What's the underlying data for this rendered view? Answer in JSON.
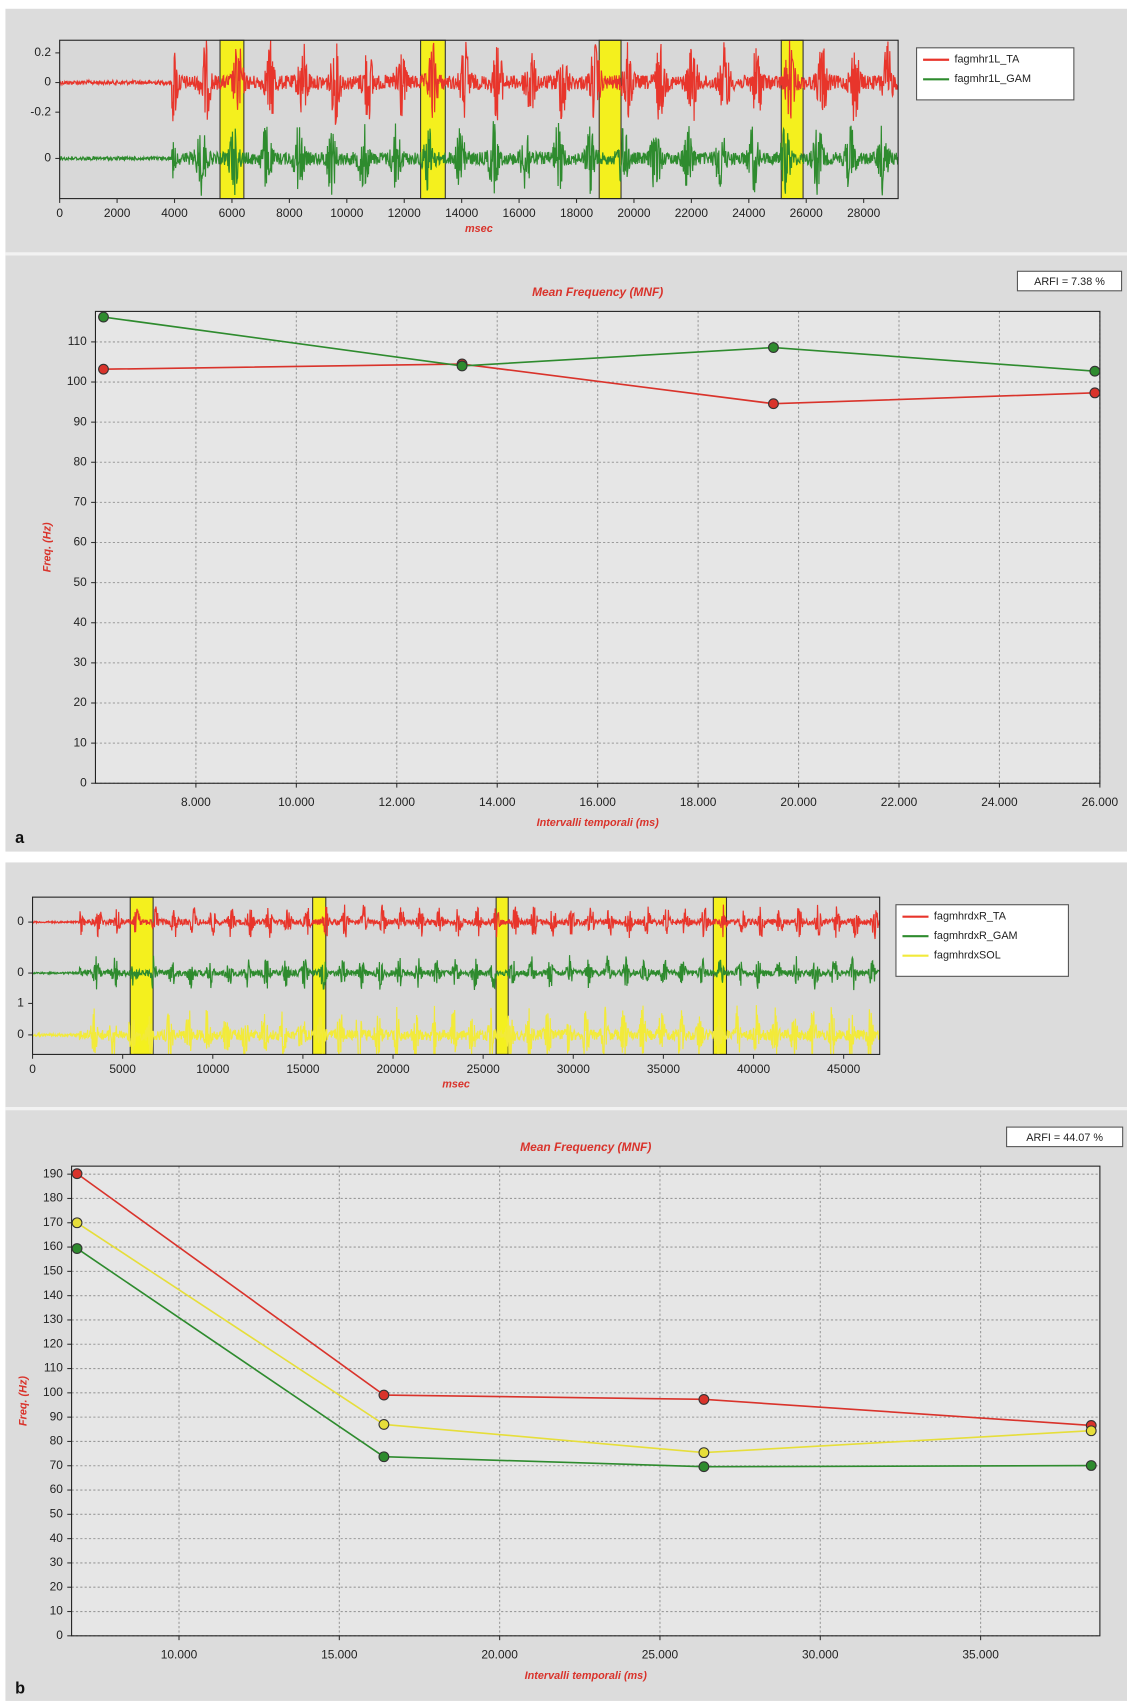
{
  "panel_labels": [
    "a",
    "b"
  ],
  "chart_data": [
    {
      "type": "signal",
      "xlabel": "msec",
      "xlim": [
        0,
        29200
      ],
      "xticks": [
        0,
        2000,
        4000,
        6000,
        8000,
        10000,
        12000,
        14000,
        16000,
        18000,
        20000,
        22000,
        24000,
        26000,
        28000
      ],
      "highlights": [
        [
          5585,
          6415
        ],
        [
          12570,
          13430
        ],
        [
          18790,
          19550
        ],
        [
          25130,
          25890
        ]
      ],
      "series": [
        {
          "name": "fagmhr1L_TA",
          "color": "#e8352b",
          "ylim": [
            -0.3,
            0.3
          ],
          "yticks": [
            0.2,
            0,
            -0.2
          ]
        },
        {
          "name": "fagmhr1L_GAM",
          "color": "#2e8b2e",
          "ylim": [
            -0.3,
            0.3
          ],
          "yticks": [
            0
          ]
        }
      ]
    },
    {
      "type": "line",
      "title": "Mean Frequency (MNF)",
      "annotation": "ARFI = 7.38 %",
      "xlabel": "Intervalli temporali (ms)",
      "ylabel": "Freq. (Hz)",
      "grid": true,
      "x": [
        6160,
        13300,
        19500,
        25900
      ],
      "series": [
        {
          "name": "fagmhr1L_TA",
          "color": "#d9332b",
          "values": [
            103.2,
            104.5,
            94.6,
            97.3
          ]
        },
        {
          "name": "fagmhr1L_GAM",
          "color": "#2e8b2e",
          "values": [
            116.2,
            104,
            108.6,
            102.7
          ]
        }
      ],
      "xlim": [
        6000,
        26000
      ],
      "xticks": [
        {
          "value": 8000,
          "label": "8.000"
        },
        {
          "value": 10000,
          "label": "10.000"
        },
        {
          "value": 12000,
          "label": "12.000"
        },
        {
          "value": 14000,
          "label": "14.000"
        },
        {
          "value": 16000,
          "label": "16.000"
        },
        {
          "value": 18000,
          "label": "18.000"
        },
        {
          "value": 20000,
          "label": "20.000"
        },
        {
          "value": 22000,
          "label": "22.000"
        },
        {
          "value": 24000,
          "label": "24.000"
        },
        {
          "value": 26000,
          "label": "26.000"
        }
      ],
      "ylim": [
        0,
        117.6
      ],
      "yticks": [
        0,
        10,
        20,
        30,
        40,
        50,
        60,
        70,
        80,
        90,
        100,
        110
      ]
    },
    {
      "type": "signal",
      "xlabel": "msec",
      "xlim": [
        0,
        47000
      ],
      "xticks": [
        0,
        5000,
        10000,
        15000,
        20000,
        25000,
        30000,
        35000,
        40000,
        45000
      ],
      "highlights": [
        [
          5420,
          6690
        ],
        [
          15540,
          16270
        ],
        [
          25720,
          26390
        ],
        [
          37770,
          38500
        ]
      ],
      "series": [
        {
          "name": "fagmhrdxR_TA",
          "color": "#e8352b",
          "ylim": [
            -1,
            1
          ],
          "yticks": [
            0
          ]
        },
        {
          "name": "fagmhrdxR_GAM",
          "color": "#2e8b2e",
          "ylim": [
            -1,
            1
          ],
          "yticks": [
            0
          ]
        },
        {
          "name": "fagmhrdxSOL",
          "color": "#f2ea3a",
          "ylim": [
            -1,
            1
          ],
          "yticks": [
            1,
            0
          ]
        }
      ]
    },
    {
      "type": "line",
      "title": "Mean Frequency (MNF)",
      "annotation": "ARFI = 44.07 %",
      "xlabel": "Intervalli temporali (ms)",
      "ylabel": "Freq. (Hz)",
      "grid": true,
      "x": [
        6820,
        16390,
        26370,
        38450
      ],
      "series": [
        {
          "name": "fagmhrdxR_TA",
          "color": "#d9332b",
          "values": [
            190.2,
            99.1,
            97.3,
            86.6
          ]
        },
        {
          "name": "fagmhrdxSOL",
          "color": "#e6de3a",
          "values": [
            170,
            87,
            75.4,
            84.4
          ]
        },
        {
          "name": "fagmhrdxR_GAM",
          "color": "#2e8b2e",
          "values": [
            159.4,
            73.7,
            69.6,
            70.1
          ]
        }
      ],
      "xlim": [
        6650,
        38720
      ],
      "xticks": [
        {
          "value": 10000,
          "label": "10.000"
        },
        {
          "value": 15000,
          "label": "15.000"
        },
        {
          "value": 20000,
          "label": "20.000"
        },
        {
          "value": 25000,
          "label": "25.000"
        },
        {
          "value": 30000,
          "label": "30.000"
        },
        {
          "value": 35000,
          "label": "35.000"
        }
      ],
      "ylim": [
        0,
        193.3
      ],
      "yticks": [
        0,
        10,
        20,
        30,
        40,
        50,
        60,
        70,
        80,
        90,
        100,
        110,
        120,
        130,
        140,
        150,
        160,
        170,
        180,
        190
      ]
    }
  ]
}
